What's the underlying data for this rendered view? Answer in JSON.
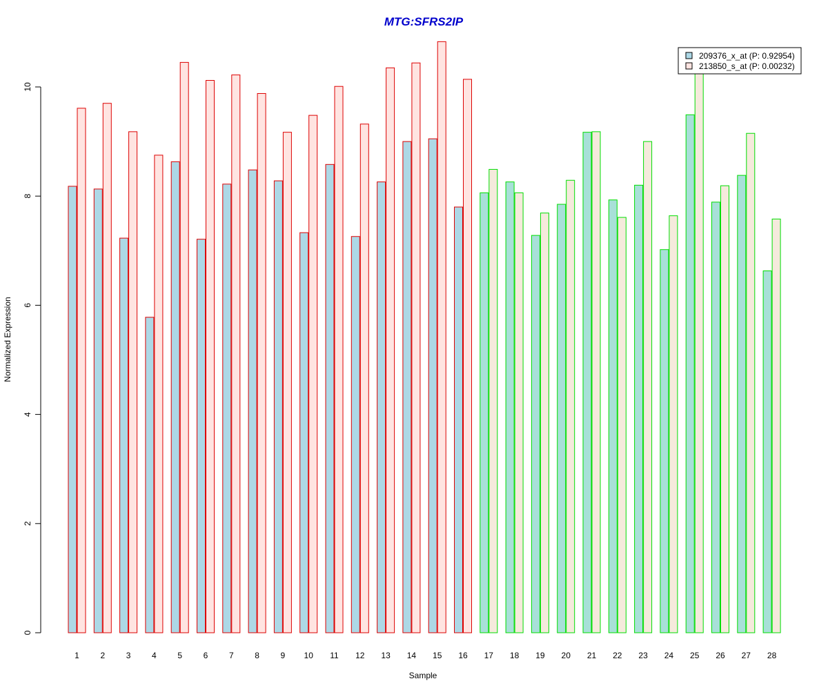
{
  "chart_data": {
    "type": "bar",
    "title": "MTG:SFRS2IP",
    "xlabel": "Sample",
    "ylabel": "Normalized Expression",
    "ylim": [
      0,
      10.8
    ],
    "yticks": [
      0,
      2,
      4,
      6,
      8,
      10
    ],
    "categories": [
      "1",
      "2",
      "3",
      "4",
      "5",
      "6",
      "7",
      "8",
      "9",
      "10",
      "11",
      "12",
      "13",
      "14",
      "15",
      "16",
      "17",
      "18",
      "19",
      "20",
      "21",
      "22",
      "23",
      "24",
      "25",
      "26",
      "27",
      "28"
    ],
    "series": [
      {
        "name": "209376_x_at (P: 0.92954)",
        "fill_group1": "#add8e6",
        "fill_group2": "#a8e0d8",
        "values": [
          8.18,
          8.13,
          7.23,
          5.78,
          8.63,
          7.21,
          8.22,
          8.48,
          8.28,
          7.33,
          8.58,
          7.26,
          8.26,
          9.0,
          9.05,
          7.8,
          8.06,
          8.26,
          7.28,
          7.85,
          9.17,
          7.93,
          8.2,
          7.02,
          9.49,
          7.89,
          8.38,
          6.63
        ]
      },
      {
        "name": "213850_s_at (P: 0.00232)",
        "fill_group1": "#ffe4e1",
        "fill_group2": "#f5eadc",
        "values": [
          9.61,
          9.7,
          9.18,
          8.75,
          10.45,
          10.12,
          10.22,
          9.88,
          9.17,
          9.48,
          10.01,
          9.32,
          10.35,
          10.44,
          10.83,
          10.14,
          8.49,
          8.06,
          7.69,
          8.29,
          9.18,
          7.61,
          9.0,
          7.64,
          10.25,
          8.19,
          9.15,
          7.58
        ]
      }
    ],
    "groups": [
      {
        "samples": [
          1,
          16
        ],
        "border": "#dd0000"
      },
      {
        "samples": [
          17,
          28
        ],
        "border": "#00dd00"
      }
    ],
    "legend_position": "top-right",
    "grid": false
  }
}
